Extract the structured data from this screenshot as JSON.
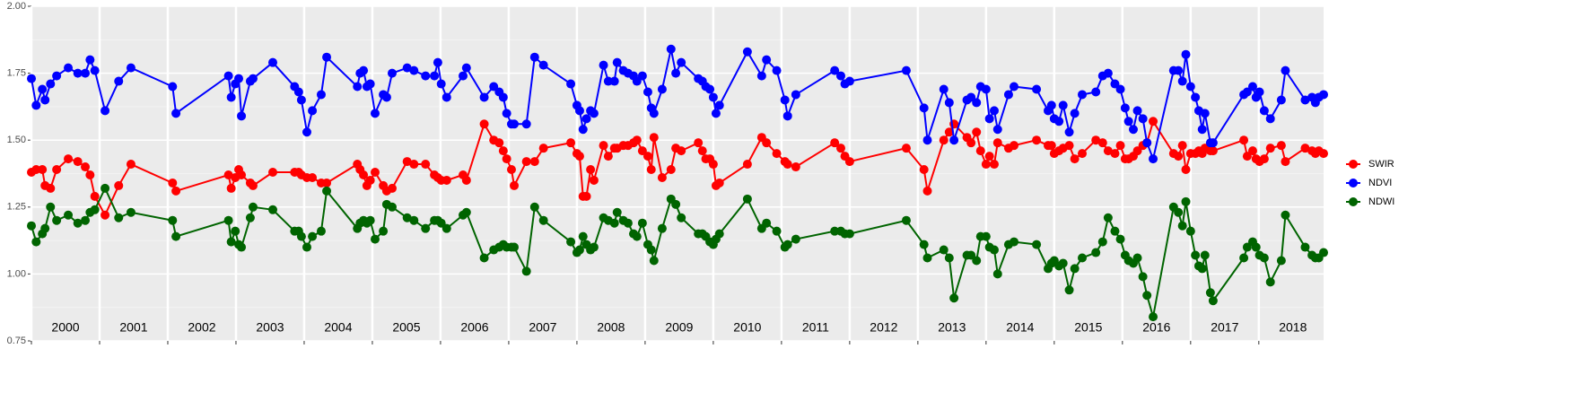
{
  "chart_data": {
    "type": "line",
    "x": [
      2000.0,
      2000.07,
      2000.16,
      2000.2,
      2000.28,
      2000.37,
      2000.54,
      2000.68,
      2000.79,
      2000.86,
      2000.93,
      2001.08,
      2001.28,
      2001.46,
      2002.07,
      2002.12,
      2002.89,
      2002.93,
      2002.99,
      2003.04,
      2003.08,
      2003.21,
      2003.25,
      2003.54,
      2003.86,
      2003.92,
      2003.96,
      2004.04,
      2004.12,
      2004.25,
      2004.33,
      2004.78,
      2004.82,
      2004.87,
      2004.92,
      2004.97,
      2005.04,
      2005.16,
      2005.21,
      2005.29,
      2005.51,
      2005.61,
      2005.78,
      2005.91,
      2005.96,
      2006.01,
      2006.09,
      2006.33,
      2006.38,
      2006.64,
      2006.78,
      2006.86,
      2006.92,
      2006.97,
      2007.04,
      2007.08,
      2007.26,
      2007.38,
      2007.51,
      2007.91,
      2008.0,
      2008.04,
      2008.09,
      2008.14,
      2008.2,
      2008.25,
      2008.39,
      2008.46,
      2008.55,
      2008.59,
      2008.68,
      2008.75,
      2008.83,
      2008.88,
      2008.96,
      2009.04,
      2009.09,
      2009.13,
      2009.25,
      2009.38,
      2009.45,
      2009.53,
      2009.78,
      2009.84,
      2009.89,
      2009.95,
      2010.0,
      2010.04,
      2010.09,
      2010.5,
      2010.71,
      2010.78,
      2010.93,
      2011.05,
      2011.09,
      2011.21,
      2011.78,
      2011.87,
      2011.93,
      2012.0,
      2012.83,
      2013.09,
      2013.14,
      2013.38,
      2013.46,
      2013.53,
      2013.72,
      2013.78,
      2013.86,
      2013.92,
      2014.0,
      2014.05,
      2014.12,
      2014.17,
      2014.33,
      2014.41,
      2014.74,
      2014.91,
      2014.96,
      2015.0,
      2015.07,
      2015.13,
      2015.22,
      2015.3,
      2015.41,
      2015.61,
      2015.71,
      2015.79,
      2015.89,
      2015.97,
      2016.04,
      2016.09,
      2016.16,
      2016.22,
      2016.3,
      2016.36,
      2016.45,
      2016.75,
      2016.82,
      2016.88,
      2016.93,
      2017.0,
      2017.07,
      2017.12,
      2017.17,
      2017.21,
      2017.29,
      2017.33,
      2017.78,
      2017.83,
      2017.91,
      2017.96,
      2018.01,
      2018.08,
      2018.17,
      2018.33,
      2018.39,
      2018.68,
      2018.78,
      2018.83,
      2018.88,
      2018.95
    ],
    "series": [
      {
        "name": "SWIR",
        "color": "#ff0000",
        "values": [
          1.38,
          1.39,
          1.39,
          1.33,
          1.32,
          1.39,
          1.43,
          1.42,
          1.4,
          1.37,
          1.29,
          1.22,
          1.33,
          1.41,
          1.34,
          1.31,
          1.37,
          1.32,
          1.36,
          1.39,
          1.37,
          1.34,
          1.33,
          1.38,
          1.38,
          1.38,
          1.37,
          1.36,
          1.36,
          1.34,
          1.34,
          1.41,
          1.39,
          1.37,
          1.33,
          1.35,
          1.38,
          1.33,
          1.31,
          1.32,
          1.42,
          1.41,
          1.41,
          1.37,
          1.36,
          1.35,
          1.35,
          1.37,
          1.35,
          1.56,
          1.5,
          1.49,
          1.46,
          1.43,
          1.39,
          1.33,
          1.42,
          1.42,
          1.47,
          1.49,
          1.45,
          1.44,
          1.29,
          1.29,
          1.39,
          1.35,
          1.48,
          1.44,
          1.47,
          1.47,
          1.48,
          1.48,
          1.49,
          1.5,
          1.46,
          1.44,
          1.39,
          1.51,
          1.36,
          1.39,
          1.47,
          1.46,
          1.49,
          1.46,
          1.43,
          1.43,
          1.41,
          1.33,
          1.34,
          1.41,
          1.51,
          1.49,
          1.45,
          1.42,
          1.41,
          1.4,
          1.49,
          1.47,
          1.44,
          1.42,
          1.47,
          1.39,
          1.31,
          1.5,
          1.53,
          1.56,
          1.51,
          1.49,
          1.53,
          1.46,
          1.41,
          1.44,
          1.41,
          1.49,
          1.47,
          1.48,
          1.5,
          1.48,
          1.48,
          1.45,
          1.46,
          1.47,
          1.48,
          1.43,
          1.45,
          1.5,
          1.49,
          1.46,
          1.45,
          1.48,
          1.43,
          1.43,
          1.44,
          1.46,
          1.48,
          1.49,
          1.57,
          1.45,
          1.44,
          1.48,
          1.39,
          1.45,
          1.45,
          1.46,
          1.45,
          1.47,
          1.46,
          1.46,
          1.5,
          1.44,
          1.46,
          1.43,
          1.42,
          1.43,
          1.47,
          1.48,
          1.42,
          1.47,
          1.46,
          1.45,
          1.46,
          1.45
        ]
      },
      {
        "name": "NDVI",
        "color": "#0000ff",
        "values": [
          1.73,
          1.63,
          1.69,
          1.65,
          1.71,
          1.74,
          1.77,
          1.75,
          1.75,
          1.8,
          1.76,
          1.61,
          1.72,
          1.77,
          1.7,
          1.6,
          1.74,
          1.66,
          1.71,
          1.73,
          1.59,
          1.72,
          1.73,
          1.79,
          1.7,
          1.68,
          1.65,
          1.53,
          1.61,
          1.67,
          1.81,
          1.7,
          1.75,
          1.76,
          1.7,
          1.71,
          1.6,
          1.67,
          1.66,
          1.75,
          1.77,
          1.76,
          1.74,
          1.74,
          1.79,
          1.71,
          1.66,
          1.74,
          1.77,
          1.66,
          1.7,
          1.68,
          1.66,
          1.6,
          1.56,
          1.56,
          1.56,
          1.81,
          1.78,
          1.71,
          1.63,
          1.61,
          1.54,
          1.58,
          1.61,
          1.6,
          1.78,
          1.72,
          1.72,
          1.79,
          1.76,
          1.75,
          1.74,
          1.72,
          1.74,
          1.68,
          1.62,
          1.6,
          1.69,
          1.84,
          1.75,
          1.79,
          1.73,
          1.72,
          1.7,
          1.69,
          1.66,
          1.6,
          1.63,
          1.83,
          1.74,
          1.8,
          1.76,
          1.65,
          1.59,
          1.67,
          1.76,
          1.74,
          1.71,
          1.72,
          1.76,
          1.62,
          1.5,
          1.69,
          1.64,
          1.5,
          1.65,
          1.66,
          1.64,
          1.7,
          1.69,
          1.58,
          1.61,
          1.54,
          1.67,
          1.7,
          1.69,
          1.61,
          1.63,
          1.58,
          1.57,
          1.63,
          1.53,
          1.6,
          1.67,
          1.68,
          1.74,
          1.75,
          1.71,
          1.69,
          1.62,
          1.57,
          1.54,
          1.61,
          1.58,
          1.49,
          1.43,
          1.76,
          1.76,
          1.72,
          1.82,
          1.7,
          1.66,
          1.61,
          1.54,
          1.6,
          1.49,
          1.49,
          1.67,
          1.68,
          1.7,
          1.66,
          1.68,
          1.61,
          1.58,
          1.65,
          1.76,
          1.65,
          1.66,
          1.64,
          1.66,
          1.67
        ]
      },
      {
        "name": "NDWI",
        "color": "#006400",
        "values": [
          1.18,
          1.12,
          1.15,
          1.17,
          1.25,
          1.2,
          1.22,
          1.19,
          1.2,
          1.23,
          1.24,
          1.32,
          1.21,
          1.23,
          1.2,
          1.14,
          1.2,
          1.12,
          1.16,
          1.11,
          1.1,
          1.21,
          1.25,
          1.24,
          1.16,
          1.16,
          1.14,
          1.1,
          1.14,
          1.16,
          1.31,
          1.17,
          1.19,
          1.2,
          1.19,
          1.2,
          1.13,
          1.16,
          1.26,
          1.25,
          1.21,
          1.2,
          1.17,
          1.2,
          1.2,
          1.19,
          1.17,
          1.22,
          1.23,
          1.06,
          1.09,
          1.1,
          1.11,
          1.1,
          1.1,
          1.1,
          1.01,
          1.25,
          1.2,
          1.12,
          1.08,
          1.09,
          1.14,
          1.11,
          1.09,
          1.1,
          1.21,
          1.2,
          1.19,
          1.23,
          1.2,
          1.19,
          1.15,
          1.14,
          1.19,
          1.11,
          1.09,
          1.05,
          1.17,
          1.28,
          1.26,
          1.21,
          1.15,
          1.15,
          1.14,
          1.12,
          1.11,
          1.13,
          1.15,
          1.28,
          1.17,
          1.19,
          1.16,
          1.1,
          1.11,
          1.13,
          1.16,
          1.16,
          1.15,
          1.15,
          1.2,
          1.11,
          1.06,
          1.09,
          1.06,
          0.91,
          1.07,
          1.07,
          1.05,
          1.14,
          1.14,
          1.1,
          1.09,
          1.0,
          1.11,
          1.12,
          1.11,
          1.02,
          1.04,
          1.05,
          1.03,
          1.04,
          0.94,
          1.02,
          1.06,
          1.08,
          1.12,
          1.21,
          1.16,
          1.13,
          1.07,
          1.05,
          1.04,
          1.06,
          0.99,
          0.92,
          0.84,
          1.25,
          1.23,
          1.18,
          1.27,
          1.16,
          1.07,
          1.03,
          1.02,
          1.07,
          0.93,
          0.9,
          1.06,
          1.1,
          1.12,
          1.1,
          1.07,
          1.06,
          0.97,
          1.05,
          1.22,
          1.1,
          1.07,
          1.06,
          1.06,
          1.08
        ]
      }
    ],
    "xlim": [
      2000,
      2018.95
    ],
    "xticks": [
      2000,
      2001,
      2002,
      2003,
      2004,
      2005,
      2006,
      2007,
      2008,
      2009,
      2010,
      2011,
      2012,
      2013,
      2014,
      2015,
      2016,
      2017,
      2018
    ],
    "ylim": [
      0.75,
      2.0
    ],
    "yticks": [
      {
        "value": 0.75,
        "label": "0.75"
      },
      {
        "value": 1.0,
        "label": "1.00"
      },
      {
        "value": 1.25,
        "label": "1.25"
      },
      {
        "value": 1.5,
        "label": "1.50"
      },
      {
        "value": 1.75,
        "label": "1.75"
      },
      {
        "value": 2.0,
        "label": "2.00"
      }
    ],
    "grid": true,
    "legend": "right"
  }
}
